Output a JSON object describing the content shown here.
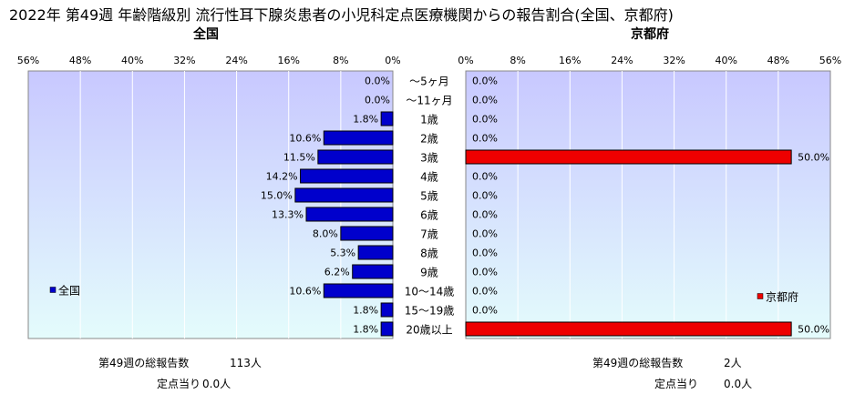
{
  "title": "2022年 第49週 年齢階級別 流行性耳下腺炎患者の小児科定点医療機関からの報告割合(全国、京都府)",
  "left_panel_title": "全国",
  "right_panel_title": "京都府",
  "chart_data": [
    {
      "type": "bar",
      "orientation": "horizontal",
      "direction": "right-to-left",
      "name": "全国",
      "categories": [
        "～5ヶ月",
        "～11ヶ月",
        "1歳",
        "2歳",
        "3歳",
        "4歳",
        "5歳",
        "6歳",
        "7歳",
        "8歳",
        "9歳",
        "10～14歳",
        "15～19歳",
        "20歳以上"
      ],
      "values": [
        0.0,
        0.0,
        1.8,
        10.6,
        11.5,
        14.2,
        15.0,
        13.3,
        8.0,
        5.3,
        6.2,
        10.6,
        1.8,
        1.8
      ],
      "value_labels": [
        "0.0%",
        "0.0%",
        "1.8%",
        "10.6%",
        "11.5%",
        "14.2%",
        "15.0%",
        "13.3%",
        "8.0%",
        "5.3%",
        "6.2%",
        "10.6%",
        "1.8%",
        "1.8%"
      ],
      "xlim": [
        0,
        56
      ],
      "ticks": [
        "56%",
        "48%",
        "40%",
        "32%",
        "24%",
        "16%",
        "8%",
        "0%"
      ],
      "legend": "全国",
      "legend_position": "bottom-left",
      "color": "#0000cc"
    },
    {
      "type": "bar",
      "orientation": "horizontal",
      "name": "京都府",
      "categories": [
        "～5ヶ月",
        "～11ヶ月",
        "1歳",
        "2歳",
        "3歳",
        "4歳",
        "5歳",
        "6歳",
        "7歳",
        "8歳",
        "9歳",
        "10～14歳",
        "15～19歳",
        "20歳以上"
      ],
      "values": [
        0.0,
        0.0,
        0.0,
        0.0,
        50.0,
        0.0,
        0.0,
        0.0,
        0.0,
        0.0,
        0.0,
        0.0,
        0.0,
        50.0
      ],
      "value_labels": [
        "0.0%",
        "0.0%",
        "0.0%",
        "0.0%",
        "50.0%",
        "0.0%",
        "0.0%",
        "0.0%",
        "0.0%",
        "0.0%",
        "0.0%",
        "0.0%",
        "0.0%",
        "50.0%"
      ],
      "xlim": [
        0,
        56
      ],
      "ticks": [
        "0%",
        "8%",
        "16%",
        "24%",
        "32%",
        "40%",
        "48%",
        "56%"
      ],
      "legend": "京都府",
      "legend_position": "bottom-right",
      "color": "#ee0000"
    }
  ],
  "footer": {
    "left_total_label": "第49週の総報告数",
    "left_total_value": "113人",
    "left_per_label": "定点当り",
    "left_per_value": "0.0人",
    "right_total_label": "第49週の総報告数",
    "right_total_value": "2人",
    "right_per_label": "定点当り",
    "right_per_value": "0.0人"
  }
}
